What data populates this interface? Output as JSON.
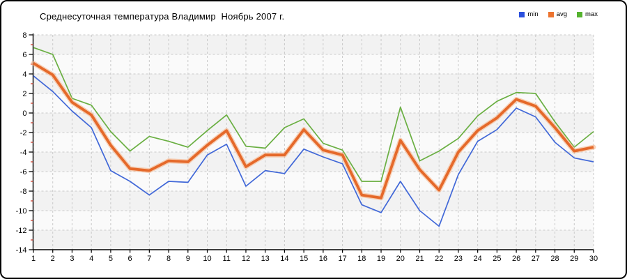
{
  "title": "Среднесуточная температура Владимир  Ноябрь 2007 г.",
  "legend": [
    {
      "label": "min",
      "color": "#2b50dd"
    },
    {
      "label": "avg",
      "color": "#ec7430"
    },
    {
      "label": "max",
      "color": "#55b32f"
    }
  ],
  "colors": {
    "min_line": "#4168d8",
    "avg_line": "#e5692a",
    "avg_halo": "#f6b68a",
    "max_line": "#6aaf42",
    "grid": "#c9c9c9",
    "axis": "#000000",
    "minor_tick": "#cc3322",
    "band_dark": "#f2f2f2",
    "band_light": "#fafafa"
  },
  "chart_data": {
    "type": "line",
    "title": "Среднесуточная температура Владимир  Ноябрь 2007 г.",
    "xlabel": "",
    "ylabel": "",
    "x": [
      1,
      2,
      3,
      4,
      5,
      6,
      7,
      8,
      9,
      10,
      11,
      12,
      13,
      14,
      15,
      16,
      17,
      18,
      19,
      20,
      21,
      22,
      23,
      24,
      25,
      26,
      27,
      28,
      29,
      30
    ],
    "ylim": [
      -14,
      8
    ],
    "ytick_step": 2,
    "grid": "dashed",
    "legend_position": "top-right",
    "series": [
      {
        "name": "min",
        "values": [
          3.8,
          2.2,
          0.2,
          -1.5,
          -5.9,
          -7.0,
          -8.4,
          -7.0,
          -7.1,
          -4.3,
          -3.2,
          -7.5,
          -5.9,
          -6.2,
          -3.7,
          -4.5,
          -5.2,
          -9.4,
          -10.2,
          -7.0,
          -10.0,
          -11.6,
          -6.3,
          -2.9,
          -1.7,
          0.5,
          -0.4,
          -3.0,
          -4.6,
          -5.0
        ]
      },
      {
        "name": "avg",
        "values": [
          5.1,
          3.9,
          1.1,
          -0.2,
          -3.3,
          -5.7,
          -5.9,
          -4.9,
          -5.0,
          -3.3,
          -1.8,
          -5.5,
          -4.3,
          -4.3,
          -1.7,
          -3.8,
          -4.3,
          -8.4,
          -8.7,
          -2.8,
          -5.8,
          -7.9,
          -4.0,
          -1.8,
          -0.5,
          1.4,
          0.7,
          -1.5,
          -3.9,
          -3.5
        ]
      },
      {
        "name": "max",
        "values": [
          6.7,
          6.0,
          1.5,
          0.8,
          -1.9,
          -3.9,
          -2.4,
          -2.9,
          -3.5,
          -1.8,
          -0.2,
          -3.4,
          -3.6,
          -1.5,
          -0.6,
          -3.1,
          -3.8,
          -7.0,
          -7.0,
          0.6,
          -4.9,
          -3.9,
          -2.6,
          -0.3,
          1.2,
          2.1,
          2.0,
          -0.9,
          -3.5,
          -1.9
        ]
      }
    ]
  }
}
